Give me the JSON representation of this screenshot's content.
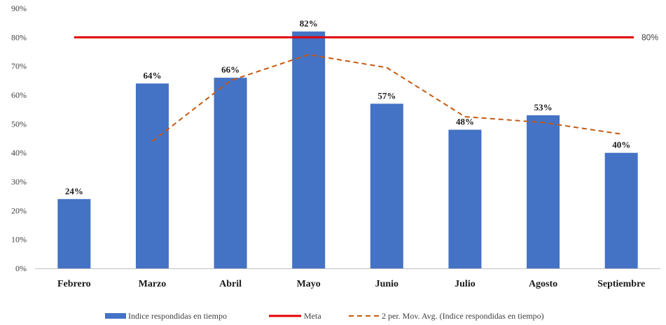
{
  "chart_data": {
    "type": "bar",
    "title": "",
    "xlabel": "",
    "ylabel": "",
    "categories": [
      "Febrero",
      "Marzo",
      "Abril",
      "Mayo",
      "Junio",
      "Julio",
      "Agosto",
      "Septiembre"
    ],
    "series": [
      {
        "name": "Indice respondidas en tiempo",
        "type": "bar",
        "color": "#4472C4",
        "values": [
          24,
          64,
          66,
          82,
          57,
          48,
          53,
          40
        ],
        "value_labels": [
          "24%",
          "64%",
          "66%",
          "82%",
          "57%",
          "48%",
          "53%",
          "40%"
        ]
      },
      {
        "name": "Meta",
        "type": "line",
        "color": "#E00000",
        "values": [
          80,
          80,
          80,
          80,
          80,
          80,
          80,
          80
        ],
        "end_label": "80%"
      },
      {
        "name": "2 per. Mov. Avg. (Indice respondidas en tiempo)",
        "type": "moving-average",
        "color": "#C55A11",
        "values": [
          null,
          44,
          65,
          74,
          69.5,
          52.5,
          50.5,
          46.5
        ]
      }
    ],
    "ylim": [
      0,
      90
    ],
    "yticks": [
      0,
      10,
      20,
      30,
      40,
      50,
      60,
      70,
      80,
      90
    ],
    "ytick_labels": [
      "0%",
      "10%",
      "20%",
      "30%",
      "40%",
      "50%",
      "60%",
      "70%",
      "80%",
      "90%"
    ],
    "grid": false,
    "legend_position": "bottom"
  }
}
